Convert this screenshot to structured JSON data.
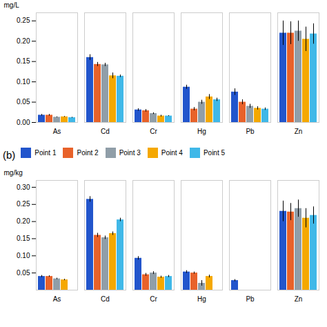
{
  "chart_data": [
    {
      "type": "bar",
      "ylabel": "mg/L",
      "categories": [
        "As",
        "Cd",
        "Cr",
        "Hg",
        "Pb",
        "Zn"
      ],
      "series": [
        {
          "name": "Point 1",
          "color": "#2255cc",
          "values": [
            0.018,
            0.16,
            0.031,
            0.087,
            0.075,
            0.22
          ],
          "errors": [
            0.002,
            0.007,
            0.003,
            0.005,
            0.008,
            0.03
          ]
        },
        {
          "name": "Point 2",
          "color": "#e8622a",
          "values": [
            0.018,
            0.143,
            0.029,
            0.033,
            0.05,
            0.22
          ],
          "errors": [
            0.002,
            0.005,
            0.003,
            0.004,
            0.006,
            0.028
          ]
        },
        {
          "name": "Point 3",
          "color": "#909ea8",
          "values": [
            0.013,
            0.142,
            0.022,
            0.05,
            0.04,
            0.225
          ],
          "errors": [
            0.001,
            0.004,
            0.002,
            0.005,
            0.005,
            0.025
          ]
        },
        {
          "name": "Point 4",
          "color": "#f5a800",
          "values": [
            0.014,
            0.115,
            0.016,
            0.063,
            0.035,
            0.205
          ],
          "errors": [
            0.001,
            0.007,
            0.002,
            0.006,
            0.004,
            0.03
          ]
        },
        {
          "name": "Point 5",
          "color": "#40b8e8",
          "values": [
            0.012,
            0.114,
            0.016,
            0.056,
            0.033,
            0.218
          ],
          "errors": [
            0.001,
            0.003,
            0.001,
            0.004,
            0.003,
            0.025
          ]
        }
      ],
      "ylim": [
        0,
        0.27
      ],
      "yticks": [
        {
          "value": 0,
          "label": "0.00"
        },
        0.05,
        {
          "value": 0.1,
          "label": "0.10"
        },
        0.15,
        {
          "value": 0.2,
          "label": "0.20"
        },
        0.25
      ],
      "grid": false
    },
    {
      "type": "bar",
      "ylabel": "mg/kg",
      "categories": [
        "As",
        "Cd",
        "Cr",
        "Hg",
        "Pb",
        "Zn"
      ],
      "series": [
        {
          "name": "Point 1",
          "color": "#2255cc",
          "values": [
            0.04,
            0.265,
            0.093,
            0.053,
            0.028,
            0.23
          ],
          "errors": [
            0.003,
            0.008,
            0.005,
            0.004,
            0.003,
            0.03
          ]
        },
        {
          "name": "Point 2",
          "color": "#e8622a",
          "values": [
            0.04,
            0.16,
            0.045,
            0.05,
            0.0,
            0.228
          ],
          "errors": [
            0.002,
            0.006,
            0.004,
            0.003,
            0.0,
            0.025
          ]
        },
        {
          "name": "Point 3",
          "color": "#909ea8",
          "values": [
            0.033,
            0.153,
            0.05,
            0.02,
            0.0,
            0.238
          ],
          "errors": [
            0.002,
            0.005,
            0.004,
            0.008,
            0.0,
            0.025
          ]
        },
        {
          "name": "Point 4",
          "color": "#f5a800",
          "values": [
            0.03,
            0.165,
            0.038,
            0.04,
            0.0,
            0.21
          ],
          "errors": [
            0.002,
            0.005,
            0.003,
            0.004,
            0.0,
            0.028
          ]
        },
        {
          "name": "Point 5",
          "color": "#40b8e8",
          "values": [
            0.0,
            0.205,
            0.04,
            0.0,
            0.0,
            0.218
          ],
          "errors": [
            0.0,
            0.005,
            0.003,
            0.0,
            0.0,
            0.025
          ]
        }
      ],
      "ylim": [
        0,
        0.32
      ],
      "yticks": [
        0.05,
        {
          "value": 0.1,
          "label": "0.10"
        },
        0.15,
        {
          "value": 0.2,
          "label": "0.20"
        },
        0.25,
        {
          "value": 0.3,
          "label": "0.30"
        }
      ],
      "grid": false,
      "legend": "top",
      "annotations": [
        "(b)"
      ]
    }
  ]
}
